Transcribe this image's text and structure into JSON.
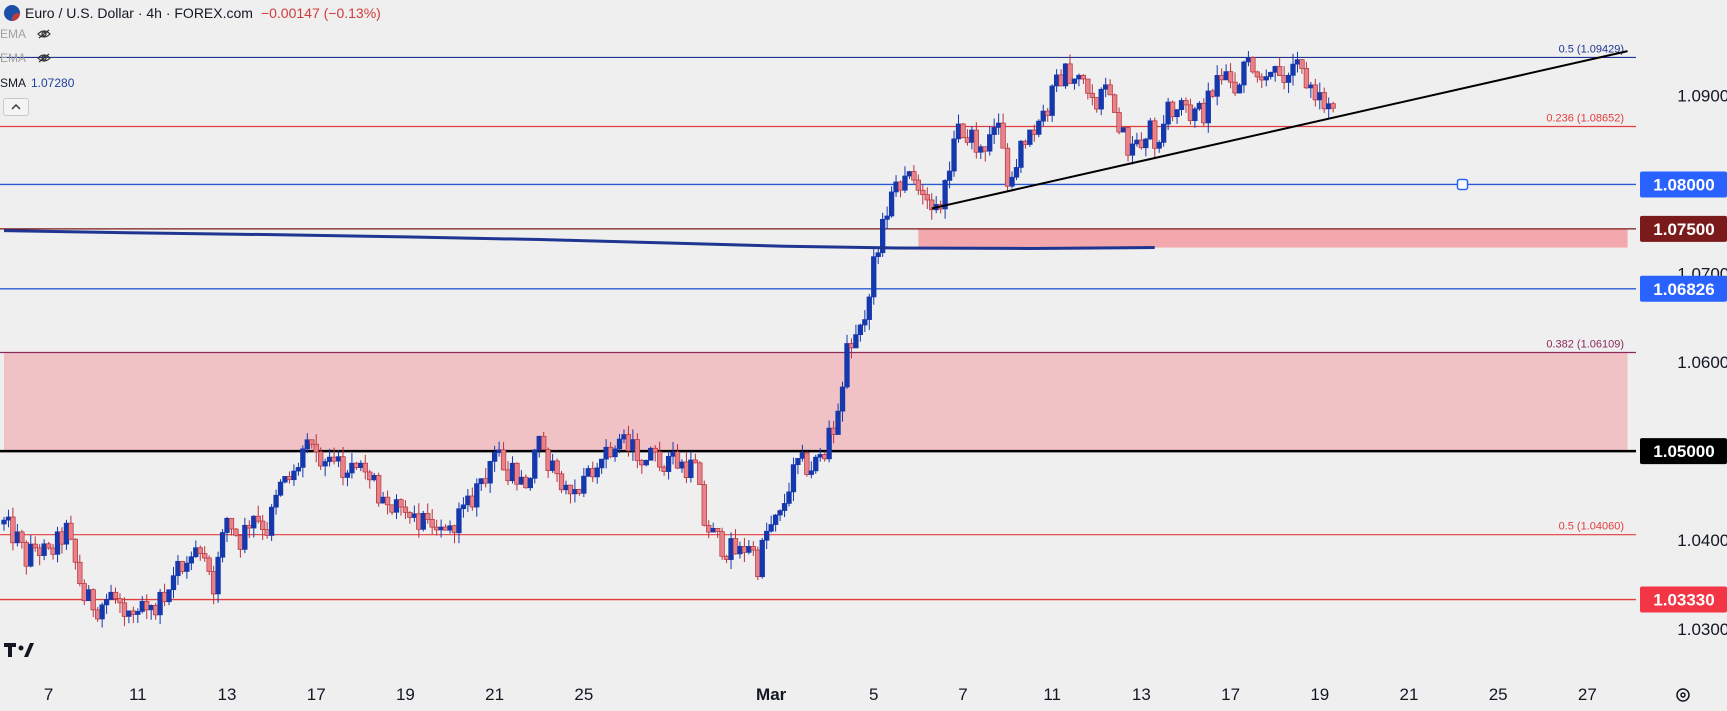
{
  "header": {
    "title": "Euro / U.S. Dollar · 4h · FOREX.com",
    "change": "−0.00147 (−0.13%)"
  },
  "indicators": [
    {
      "name": "EMA",
      "hidden": true,
      "value": ""
    },
    {
      "name": "EMA",
      "hidden": true,
      "value": ""
    },
    {
      "name": "SMA",
      "hidden": false,
      "value": "1.07280"
    }
  ],
  "collapse_icon": "chevron-up-icon",
  "chart_data": {
    "type": "candlestick",
    "title": "Euro / U.S. Dollar · 4h · FOREX.com",
    "ylim": [
      1.0265,
      1.0985
    ],
    "y_ticks": [
      "1.09000",
      "1.07000",
      "1.06000",
      "1.04000",
      "1.03000"
    ],
    "x_ticks": [
      "7",
      "11",
      "13",
      "17",
      "19",
      "21",
      "25",
      "Mar",
      "5",
      "7",
      "11",
      "13",
      "17",
      "19",
      "21",
      "25",
      "27"
    ],
    "x_tick_bar_index": [
      10,
      30,
      50,
      70,
      90,
      110,
      130,
      172,
      195,
      215,
      235,
      255,
      275,
      295,
      315,
      335,
      355
    ],
    "bar_count": 366,
    "last_bar_index": 298,
    "colors": {
      "up": "#1538ad",
      "down": "#e8828a",
      "down_edge": "#b8323a",
      "sma": "#1f3591",
      "trend": "#000000"
    },
    "waypoints": [
      [
        0,
        1.0418
      ],
      [
        3,
        1.04
      ],
      [
        5,
        1.0378
      ],
      [
        7,
        1.0392
      ],
      [
        10,
        1.0382
      ],
      [
        14,
        1.041
      ],
      [
        18,
        1.0335
      ],
      [
        21,
        1.0325
      ],
      [
        24,
        1.0338
      ],
      [
        29,
        1.0312
      ],
      [
        33,
        1.0322
      ],
      [
        36,
        1.0338
      ],
      [
        40,
        1.037
      ],
      [
        45,
        1.0386
      ],
      [
        47,
        1.035
      ],
      [
        50,
        1.0425
      ],
      [
        53,
        1.04
      ],
      [
        56,
        1.0432
      ],
      [
        59,
        1.0412
      ],
      [
        62,
        1.046
      ],
      [
        65,
        1.0472
      ],
      [
        67,
        1.05
      ],
      [
        70,
        1.0502
      ],
      [
        73,
        1.0485
      ],
      [
        78,
        1.048
      ],
      [
        82,
        1.0462
      ],
      [
        87,
        1.044
      ],
      [
        92,
        1.0428
      ],
      [
        97,
        1.0412
      ],
      [
        101,
        1.0422
      ],
      [
        104,
        1.0436
      ],
      [
        107,
        1.047
      ],
      [
        110,
        1.05
      ],
      [
        113,
        1.048
      ],
      [
        117,
        1.0465
      ],
      [
        120,
        1.0505
      ],
      [
        123,
        1.048
      ],
      [
        126,
        1.0465
      ],
      [
        130,
        1.046
      ],
      [
        134,
        1.049
      ],
      [
        138,
        1.0505
      ],
      [
        142,
        1.05
      ],
      [
        147,
        1.049
      ],
      [
        152,
        1.0485
      ],
      [
        155,
        1.048
      ],
      [
        157,
        1.042
      ],
      [
        159,
        1.0405
      ],
      [
        162,
        1.039
      ],
      [
        165,
        1.0385
      ],
      [
        167,
        1.0398
      ],
      [
        169,
        1.0372
      ],
      [
        171,
        1.0408
      ],
      [
        174,
        1.0425
      ],
      [
        176,
        1.0462
      ],
      [
        178,
        1.0485
      ],
      [
        181,
        1.0482
      ],
      [
        184,
        1.0498
      ],
      [
        187,
        1.0545
      ],
      [
        189,
        1.061
      ],
      [
        191,
        1.0618
      ],
      [
        193,
        1.064
      ],
      [
        195,
        1.0715
      ],
      [
        197,
        1.0748
      ],
      [
        199,
        1.0785
      ],
      [
        202,
        1.0798
      ],
      [
        205,
        1.0805
      ],
      [
        207,
        1.0795
      ],
      [
        209,
        1.077
      ],
      [
        211,
        1.0795
      ],
      [
        213,
        1.085
      ],
      [
        215,
        1.086
      ],
      [
        217,
        1.0855
      ],
      [
        219,
        1.083
      ],
      [
        221,
        1.085
      ],
      [
        223,
        1.0855
      ],
      [
        225,
        1.0812
      ],
      [
        227,
        1.083
      ],
      [
        229,
        1.0848
      ],
      [
        232,
        1.087
      ],
      [
        235,
        1.09
      ],
      [
        237,
        1.0922
      ],
      [
        239,
        1.0926
      ],
      [
        241,
        1.0915
      ],
      [
        243,
        1.09
      ],
      [
        245,
        1.0895
      ],
      [
        247,
        1.09
      ],
      [
        250,
        1.087
      ],
      [
        252,
        1.0845
      ],
      [
        254,
        1.085
      ],
      [
        257,
        1.086
      ],
      [
        259,
        1.0848
      ],
      [
        261,
        1.088
      ],
      [
        263,
        1.0885
      ],
      [
        266,
        1.088
      ],
      [
        269,
        1.0882
      ],
      [
        272,
        1.0915
      ],
      [
        274,
        1.092
      ],
      [
        276,
        1.0905
      ],
      [
        278,
        1.093
      ],
      [
        280,
        1.094
      ],
      [
        282,
        1.092
      ],
      [
        284,
        1.0935
      ],
      [
        286,
        1.093
      ],
      [
        288,
        1.0925
      ],
      [
        290,
        1.093
      ],
      [
        292,
        1.0915
      ],
      [
        294,
        1.0905
      ],
      [
        296,
        1.089
      ],
      [
        298,
        1.0885
      ]
    ],
    "sma": {
      "label": "SMA",
      "points": [
        [
          0,
          1.0748
        ],
        [
          30,
          1.07455
        ],
        [
          60,
          1.07435
        ],
        [
          90,
          1.0741
        ],
        [
          120,
          1.0738
        ],
        [
          150,
          1.0734
        ],
        [
          175,
          1.07305
        ],
        [
          200,
          1.07285
        ],
        [
          230,
          1.0728
        ],
        [
          258,
          1.0729
        ]
      ]
    },
    "trendline": {
      "points": [
        [
          208,
          1.0773
        ],
        [
          364,
          1.095
        ]
      ]
    },
    "fib_levels": [
      {
        "ratio": "0.5",
        "price": 1.09429,
        "label": "0.5 (1.09429)",
        "color": "#1f3591"
      },
      {
        "ratio": "0.236",
        "price": 1.08652,
        "label": "0.236 (1.08652)",
        "color": "#e23d3d"
      },
      {
        "ratio": "0.382",
        "price": 1.06109,
        "label": "0.382 (1.06109)",
        "color": "#8a2a5a"
      },
      {
        "ratio": "0.5",
        "price": 1.0406,
        "label": "0.5 (1.04060)",
        "color": "#e23d3d"
      }
    ],
    "horizontal_levels": [
      {
        "price": 1.08,
        "label": "1.08000",
        "line_color": "#2a5bd7",
        "badge_color": "#2962ff",
        "text_color": "#ffffff"
      },
      {
        "price": 1.075,
        "label": "1.07500",
        "line_color": "#7a1a1a",
        "badge_color": "#7a1a1a",
        "text_color": "#ffffff"
      },
      {
        "price": 1.06826,
        "label": "1.06826",
        "line_color": "#2a5bd7",
        "badge_color": "#2962ff",
        "text_color": "#ffffff"
      },
      {
        "price": 1.05,
        "label": "1.05000",
        "line_color": "#000000",
        "badge_color": "#000000",
        "text_color": "#ffffff"
      },
      {
        "price": 1.0333,
        "label": "1.03330",
        "line_color": "#e23d3d",
        "badge_color": "#f23645",
        "text_color": "#ffffff"
      }
    ],
    "zones": [
      {
        "from_bar": 205,
        "to_bar": 364,
        "from_price": 1.0729,
        "to_price": 1.075,
        "color": "#f2a8ad"
      },
      {
        "from_bar": 0,
        "to_bar": 364,
        "from_price": 1.05,
        "to_price": 1.06109,
        "color": "#f0c2c6"
      }
    ],
    "marker": {
      "bar": 327,
      "price": 1.08
    },
    "grid": false,
    "watermark": "TV"
  }
}
